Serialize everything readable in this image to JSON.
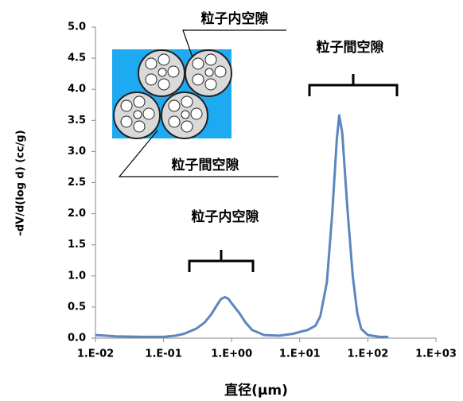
{
  "chart_data": {
    "type": "line",
    "xlabel": "直径(μm)",
    "ylabel": "-dV/d(log d) (cc/g)",
    "annotations": [
      "粒子内空隙",
      "粒子間空隙",
      "粒子間空隙",
      "粒子内空隙"
    ],
    "x": [
      0.01,
      0.02,
      0.05,
      0.1,
      0.15,
      0.2,
      0.3,
      0.4,
      0.5,
      0.6,
      0.7,
      0.8,
      0.9,
      1.0,
      1.3,
      1.6,
      2,
      3,
      5,
      8,
      10,
      13,
      17,
      20,
      25,
      30,
      35,
      38,
      42,
      50,
      60,
      70,
      80,
      100,
      150,
      200
    ],
    "values": [
      0.05,
      0.03,
      0.02,
      0.02,
      0.04,
      0.07,
      0.15,
      0.25,
      0.38,
      0.52,
      0.63,
      0.66,
      0.63,
      0.56,
      0.4,
      0.25,
      0.13,
      0.05,
      0.04,
      0.07,
      0.1,
      0.13,
      0.2,
      0.35,
      0.9,
      2.0,
      3.2,
      3.58,
      3.3,
      2.1,
      1.0,
      0.4,
      0.15,
      0.05,
      0.02,
      0.02
    ],
    "color": "#5b86c0",
    "xscale": "log",
    "xlim": [
      0.01,
      1000
    ],
    "xticks": [
      {
        "value": 0.01,
        "label": "1.E-02"
      },
      {
        "value": 0.1,
        "label": "1.E-01"
      },
      {
        "value": 1,
        "label": "1.E+00"
      },
      {
        "value": 10,
        "label": "1.E+01"
      },
      {
        "value": 100,
        "label": "1.E+02"
      },
      {
        "value": 1000,
        "label": "1.E+03"
      }
    ],
    "ylim": [
      0,
      5
    ],
    "yticks": [
      {
        "value": 0,
        "label": "0.0"
      },
      {
        "value": 0.5,
        "label": "0.5"
      },
      {
        "value": 1,
        "label": "1.0"
      },
      {
        "value": 1.5,
        "label": "1.5"
      },
      {
        "value": 2,
        "label": "2.0"
      },
      {
        "value": 2.5,
        "label": "2.5"
      },
      {
        "value": 3,
        "label": "3.0"
      },
      {
        "value": 3.5,
        "label": "3.5"
      },
      {
        "value": 4,
        "label": "4.0"
      },
      {
        "value": 4.5,
        "label": "4.5"
      },
      {
        "value": 5,
        "label": "5.0"
      }
    ]
  }
}
